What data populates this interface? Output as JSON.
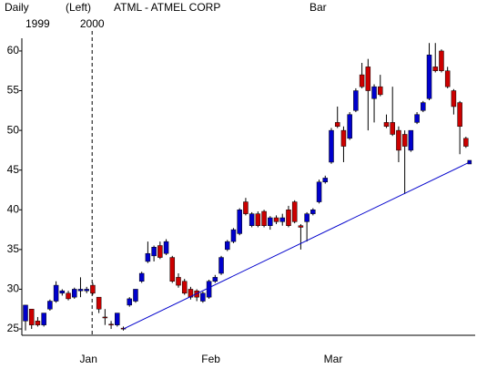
{
  "chart_data": {
    "type": "candlestick",
    "header": [
      "Daily",
      "(Left)",
      "ATML - ATMEL CORP",
      "Bar"
    ],
    "year_labels": [
      "1999",
      "2000"
    ],
    "categories": [
      null,
      null,
      null,
      null,
      null,
      null,
      null,
      null,
      null,
      null,
      "Jan",
      null,
      null,
      null,
      null,
      null,
      null,
      null,
      null,
      null,
      null,
      null,
      null,
      null,
      null,
      null,
      null,
      null,
      null,
      null,
      "Feb",
      null,
      null,
      null,
      null,
      null,
      null,
      null,
      null,
      null,
      null,
      null,
      null,
      null,
      null,
      null,
      null,
      null,
      null,
      null,
      "Mar",
      null,
      null,
      null,
      null,
      null,
      null,
      null,
      null,
      null,
      null,
      null,
      null,
      null,
      null,
      null,
      null,
      null,
      null,
      null,
      null,
      null,
      null
    ],
    "open": [
      26,
      27.5,
      26,
      25.5,
      27.5,
      28.5,
      29.5,
      29.5,
      29,
      29.8,
      29.8,
      30.5,
      29,
      26.5,
      25.6,
      25.5,
      25.1,
      28,
      28.5,
      31,
      33.5,
      34.2,
      35.5,
      34.5,
      34,
      31.5,
      31,
      30,
      29.8,
      28.5,
      29,
      31,
      32,
      35,
      36,
      37,
      41,
      38,
      39.5,
      39.8,
      38,
      39,
      38.5,
      40,
      41,
      38,
      38.5,
      39.5,
      41,
      43.5,
      46,
      51,
      50,
      49,
      52.5,
      57,
      58,
      54,
      55.5,
      51,
      51,
      50,
      49.5,
      47.5,
      51,
      52.5,
      54,
      58,
      60,
      57.5,
      55,
      53.5,
      49
    ],
    "high": [
      28,
      27.5,
      26.5,
      27,
      28.7,
      31,
      30,
      29.8,
      30.2,
      31.5,
      30.3,
      30.8,
      29,
      27.5,
      26,
      27,
      25.3,
      29,
      30,
      32.2,
      36,
      35.5,
      36,
      36.3,
      34.2,
      32,
      31.3,
      30.3,
      30,
      29.7,
      31.2,
      31.8,
      34.2,
      36.2,
      37.7,
      40.2,
      41.5,
      39.7,
      39.8,
      40,
      39.2,
      39.3,
      39.5,
      40.5,
      41.2,
      38.2,
      39.7,
      40.2,
      43.8,
      44.3,
      50.3,
      53,
      50.5,
      52.3,
      55.3,
      58.5,
      59,
      55.8,
      57,
      52,
      55.5,
      50.5,
      50,
      50,
      52.3,
      53.7,
      61,
      61,
      60.2,
      58,
      55.2,
      53.7,
      49.2
    ],
    "low": [
      24.8,
      25,
      25.3,
      25.3,
      27.3,
      28.3,
      29.2,
      28.6,
      28.8,
      29,
      29.5,
      29.3,
      27,
      25.5,
      25,
      25.3,
      24.8,
      27.8,
      28.3,
      30.8,
      33.3,
      33.5,
      33.8,
      34.3,
      30.8,
      30.2,
      29.3,
      28.7,
      28.5,
      28.3,
      28.8,
      30.8,
      31.8,
      34.8,
      35.8,
      36.8,
      39.3,
      37.8,
      37.8,
      37.8,
      37.5,
      38.2,
      38,
      37.8,
      38.3,
      35,
      36,
      39.3,
      40.8,
      43.3,
      45.8,
      50.3,
      46,
      48.8,
      52.3,
      55.3,
      50,
      51,
      54.3,
      50.3,
      49.3,
      46,
      42,
      47.3,
      50.8,
      52.3,
      53.8,
      57.3,
      57.3,
      55.3,
      52,
      47,
      47.8
    ],
    "close": [
      28,
      25.5,
      25.5,
      27,
      28.5,
      30.5,
      29.8,
      28.8,
      30,
      30,
      30,
      29.5,
      27.5,
      26.4,
      25.5,
      27,
      25,
      28.8,
      30,
      32,
      34.5,
      35.3,
      34,
      36,
      31,
      30.5,
      29.5,
      29,
      29,
      29.5,
      31,
      31.5,
      34,
      36,
      37.5,
      40,
      39.5,
      39.5,
      38,
      38,
      39,
      38.5,
      39,
      38,
      38.5,
      37.8,
      39.5,
      40,
      43.5,
      44,
      50,
      50.5,
      48,
      52,
      55,
      55.5,
      55,
      55.5,
      54.5,
      50.5,
      49.5,
      47.5,
      48,
      50,
      52,
      53.5,
      59.5,
      57.5,
      57.5,
      55.5,
      53,
      50.5,
      48
    ],
    "up_color": "#0000cc",
    "down_color": "#cc0000",
    "trendline_color": "#0000cc",
    "trendline": {
      "start": [
        16,
        25
      ],
      "end": [
        72,
        46
      ]
    },
    "ylim": [
      24.2,
      61.6
    ],
    "yticks": [
      25,
      30,
      35,
      40,
      45,
      50,
      55,
      60
    ]
  }
}
